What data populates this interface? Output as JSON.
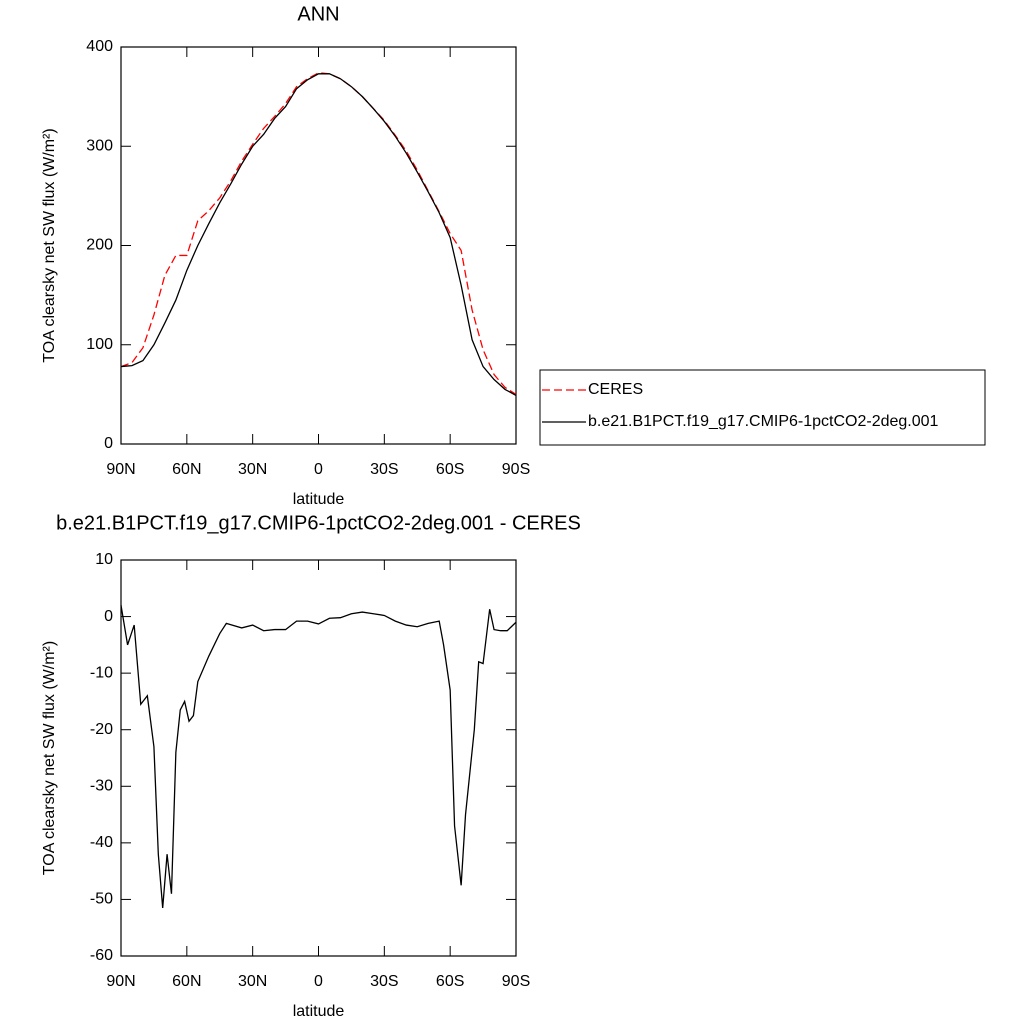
{
  "chart_data": [
    {
      "type": "line",
      "title": "ANN",
      "x_label": "latitude",
      "y_label": "TOA clearsky net SW flux (W/m²)",
      "x": [
        90,
        85,
        80,
        75,
        70,
        65,
        60,
        55,
        50,
        45,
        40,
        35,
        30,
        25,
        20,
        15,
        10,
        5,
        0,
        -5,
        -10,
        -15,
        -20,
        -25,
        -30,
        -35,
        -40,
        -45,
        -50,
        -55,
        -60,
        -65,
        -70,
        -75,
        -80,
        -85,
        -90
      ],
      "series": [
        {
          "name": "CERES",
          "color": "#ff0000",
          "dash": true,
          "values": [
            78,
            82,
            97,
            130,
            170,
            190,
            190,
            225,
            235,
            248,
            265,
            285,
            302,
            318,
            330,
            343,
            360,
            368,
            374,
            373,
            368,
            360,
            350,
            338,
            326,
            311,
            295,
            276,
            255,
            234,
            212,
            195,
            135,
            95,
            70,
            57,
            50
          ]
        },
        {
          "name": "b.e21.B1PCT.f19_g17.CMIP6-1pctCO2-2deg.001",
          "color": "#000000",
          "dash": false,
          "values": [
            78,
            79,
            84,
            100,
            122,
            145,
            175,
            200,
            222,
            243,
            262,
            282,
            300,
            312,
            328,
            340,
            358,
            367,
            373,
            373,
            368,
            360,
            350,
            338,
            325,
            310,
            293,
            274,
            254,
            233,
            208,
            160,
            105,
            78,
            65,
            55,
            49
          ]
        }
      ],
      "xlim": [
        90,
        -90
      ],
      "xticks": [
        {
          "value": 90,
          "label": "90N"
        },
        {
          "value": 60,
          "label": "60N"
        },
        {
          "value": 30,
          "label": "30N"
        },
        0,
        {
          "value": -30,
          "label": "30S"
        },
        {
          "value": -60,
          "label": "60S"
        },
        {
          "value": -90,
          "label": "90S"
        }
      ],
      "ylim": [
        0,
        400
      ],
      "yticks": [
        0,
        100,
        200,
        300,
        400
      ],
      "legend": "right"
    },
    {
      "type": "line",
      "title": "b.e21.B1PCT.f19_g17.CMIP6-1pctCO2-2deg.001 - CERES",
      "x_label": "latitude",
      "y_label": "TOA clearsky net SW flux (W/m²)",
      "x": [
        90,
        87,
        84,
        81,
        78,
        75,
        73,
        71,
        69,
        67,
        65,
        63,
        61,
        59,
        57,
        55,
        50,
        45,
        42,
        35,
        30,
        25,
        20,
        15,
        10,
        5,
        0,
        -5,
        -10,
        -15,
        -20,
        -25,
        -30,
        -35,
        -40,
        -45,
        -50,
        -55,
        -57,
        -60,
        -62,
        -65,
        -67,
        -71,
        -73,
        -75,
        -78,
        -80,
        -83,
        -86,
        -90
      ],
      "values": [
        2,
        -5,
        -1.5,
        -15.5,
        -14,
        -23,
        -42,
        -51.5,
        -42,
        -49,
        -24,
        -16.5,
        -15,
        -18.5,
        -17.5,
        -11.5,
        -7,
        -3,
        -1.2,
        -2,
        -1.5,
        -2.5,
        -2.3,
        -2.3,
        -0.8,
        -0.8,
        -1.3,
        -0.3,
        -0.2,
        0.5,
        0.8,
        0.5,
        0.2,
        -0.8,
        -1.5,
        -1.8,
        -1.2,
        -0.8,
        -5,
        -13,
        -37,
        -47.5,
        -35,
        -20,
        -8,
        -8.3,
        1.3,
        -2.3,
        -2.5,
        -2.5,
        -1
      ],
      "color": "#000000",
      "xlim": [
        90,
        -90
      ],
      "xticks": [
        {
          "value": 90,
          "label": "90N"
        },
        {
          "value": 60,
          "label": "60N"
        },
        {
          "value": 30,
          "label": "30N"
        },
        0,
        {
          "value": -30,
          "label": "30S"
        },
        {
          "value": -60,
          "label": "60S"
        },
        {
          "value": -90,
          "label": "90S"
        }
      ],
      "ylim": [
        -60,
        10
      ],
      "yticks": [
        -60,
        -50,
        -40,
        -30,
        -20,
        -10,
        0,
        10
      ]
    }
  ]
}
